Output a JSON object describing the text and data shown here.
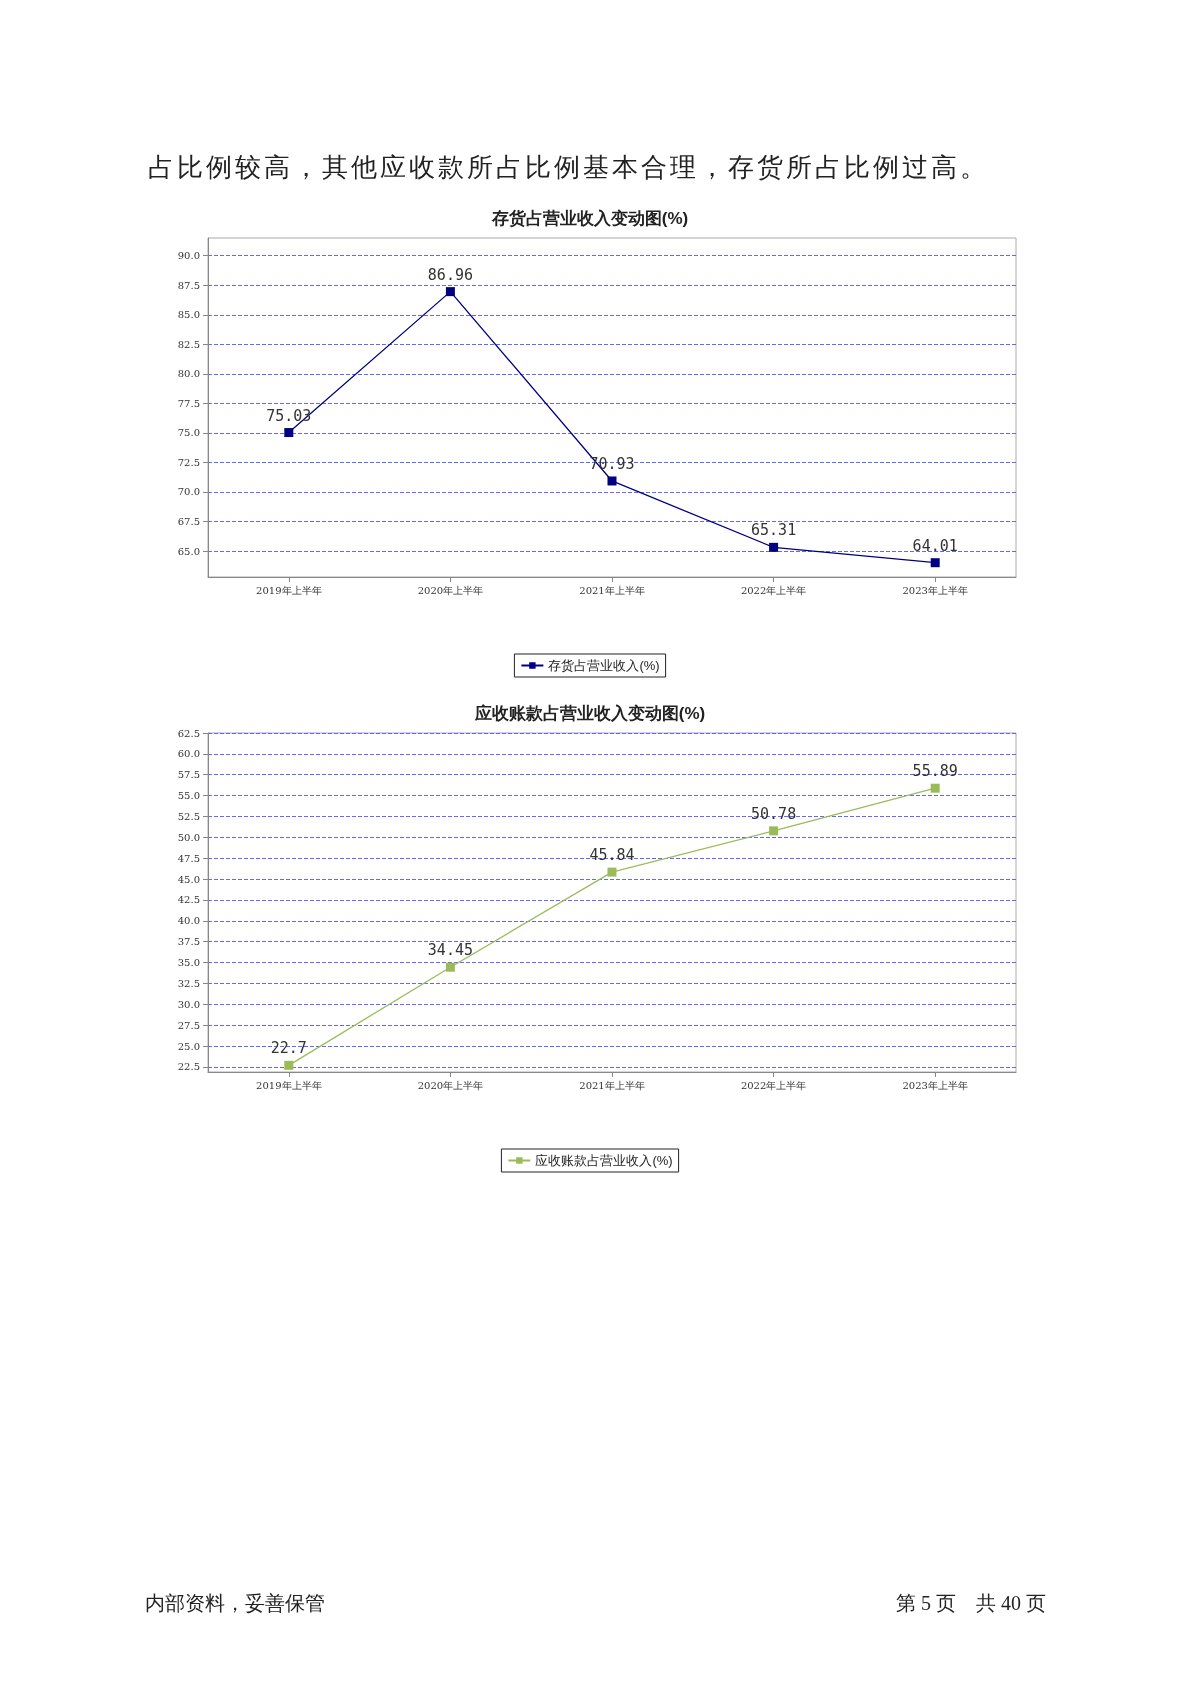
{
  "chart_data": [
    {
      "type": "line",
      "title": "存货占营业收入变动图(%)",
      "categories": [
        "2019年上半年",
        "2020年上半年",
        "2021年上半年",
        "2022年上半年",
        "2023年上半年"
      ],
      "series": [
        {
          "name": "存货占营业收入(%)",
          "color": "#000080",
          "values": [
            75.03,
            86.96,
            70.93,
            65.31,
            64.01
          ]
        }
      ],
      "ylim": [
        62.8,
        91.5
      ],
      "yticks": [
        {
          "value": 65,
          "label": "65.0"
        },
        {
          "value": 67.5,
          "label": "67.5"
        },
        {
          "value": 70,
          "label": "70.0"
        },
        {
          "value": 72.5,
          "label": "72.5"
        },
        {
          "value": 75,
          "label": "75.0"
        },
        {
          "value": 77.5,
          "label": "77.5"
        },
        {
          "value": 80,
          "label": "80.0"
        },
        {
          "value": 82.5,
          "label": "82.5"
        },
        {
          "value": 85,
          "label": "85.0"
        },
        {
          "value": 87.5,
          "label": "87.5"
        },
        {
          "value": 90,
          "label": "90.0"
        }
      ],
      "grid": "y",
      "legend": "bottom",
      "marker": "square",
      "line_style": "solid",
      "data_labels": true,
      "annotations": [
        "占比例较高，其他应收款所占比例基本合理，存货所占比例过高。"
      ]
    },
    {
      "type": "line",
      "title": "应收账款占营业收入变动图(%)",
      "categories": [
        "2019年上半年",
        "2020年上半年",
        "2021年上半年",
        "2022年上半年",
        "2023年上半年"
      ],
      "series": [
        {
          "name": "应收账款占营业收入(%)",
          "color": "#9bbb59",
          "values": [
            22.7,
            34.45,
            45.84,
            50.78,
            55.89
          ]
        }
      ],
      "ylim": [
        21.9,
        62.5
      ],
      "yticks": [
        {
          "value": 22.5,
          "label": "22.5"
        },
        {
          "value": 25,
          "label": "25.0"
        },
        {
          "value": 27.5,
          "label": "27.5"
        },
        {
          "value": 30,
          "label": "30.0"
        },
        {
          "value": 32.5,
          "label": "32.5"
        },
        {
          "value": 35,
          "label": "35.0"
        },
        {
          "value": 37.5,
          "label": "37.5"
        },
        {
          "value": 40,
          "label": "40.0"
        },
        {
          "value": 42.5,
          "label": "42.5"
        },
        {
          "value": 45,
          "label": "45.0"
        },
        {
          "value": 47.5,
          "label": "47.5"
        },
        {
          "value": 50,
          "label": "50.0"
        },
        {
          "value": 52.5,
          "label": "52.5"
        },
        {
          "value": 55,
          "label": "55.0"
        },
        {
          "value": 57.5,
          "label": "57.5"
        },
        {
          "value": 60,
          "label": "60.0"
        },
        {
          "value": 62.5,
          "label": "62.5"
        }
      ],
      "grid": "y",
      "legend": "bottom",
      "marker": "square",
      "line_style": "solid",
      "data_labels": true,
      "annotations": [
        "内部资料，妥善保管",
        "第 5 页　共 40 页"
      ]
    }
  ]
}
